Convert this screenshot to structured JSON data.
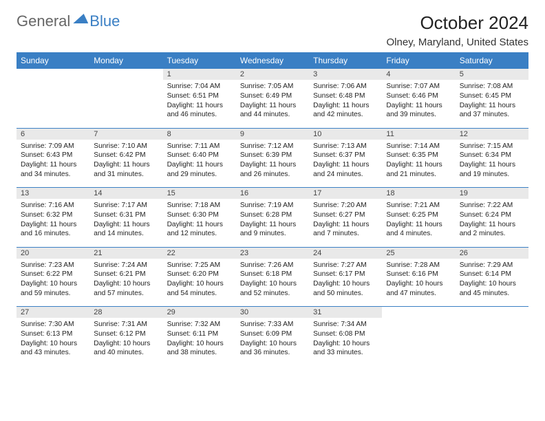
{
  "logo": {
    "part1": "General",
    "part2": "Blue"
  },
  "title": "October 2024",
  "location": "Olney, Maryland, United States",
  "colors": {
    "header_bg": "#3a7fc4",
    "header_fg": "#ffffff",
    "daynum_bg": "#e9e9e9",
    "rule": "#3a7fc4",
    "page_bg": "#ffffff",
    "text": "#222222"
  },
  "day_headers": [
    "Sunday",
    "Monday",
    "Tuesday",
    "Wednesday",
    "Thursday",
    "Friday",
    "Saturday"
  ],
  "weeks": [
    [
      null,
      null,
      {
        "n": 1,
        "sr": "7:04 AM",
        "ss": "6:51 PM",
        "dl": "11 hours and 46 minutes."
      },
      {
        "n": 2,
        "sr": "7:05 AM",
        "ss": "6:49 PM",
        "dl": "11 hours and 44 minutes."
      },
      {
        "n": 3,
        "sr": "7:06 AM",
        "ss": "6:48 PM",
        "dl": "11 hours and 42 minutes."
      },
      {
        "n": 4,
        "sr": "7:07 AM",
        "ss": "6:46 PM",
        "dl": "11 hours and 39 minutes."
      },
      {
        "n": 5,
        "sr": "7:08 AM",
        "ss": "6:45 PM",
        "dl": "11 hours and 37 minutes."
      }
    ],
    [
      {
        "n": 6,
        "sr": "7:09 AM",
        "ss": "6:43 PM",
        "dl": "11 hours and 34 minutes."
      },
      {
        "n": 7,
        "sr": "7:10 AM",
        "ss": "6:42 PM",
        "dl": "11 hours and 31 minutes."
      },
      {
        "n": 8,
        "sr": "7:11 AM",
        "ss": "6:40 PM",
        "dl": "11 hours and 29 minutes."
      },
      {
        "n": 9,
        "sr": "7:12 AM",
        "ss": "6:39 PM",
        "dl": "11 hours and 26 minutes."
      },
      {
        "n": 10,
        "sr": "7:13 AM",
        "ss": "6:37 PM",
        "dl": "11 hours and 24 minutes."
      },
      {
        "n": 11,
        "sr": "7:14 AM",
        "ss": "6:35 PM",
        "dl": "11 hours and 21 minutes."
      },
      {
        "n": 12,
        "sr": "7:15 AM",
        "ss": "6:34 PM",
        "dl": "11 hours and 19 minutes."
      }
    ],
    [
      {
        "n": 13,
        "sr": "7:16 AM",
        "ss": "6:32 PM",
        "dl": "11 hours and 16 minutes."
      },
      {
        "n": 14,
        "sr": "7:17 AM",
        "ss": "6:31 PM",
        "dl": "11 hours and 14 minutes."
      },
      {
        "n": 15,
        "sr": "7:18 AM",
        "ss": "6:30 PM",
        "dl": "11 hours and 12 minutes."
      },
      {
        "n": 16,
        "sr": "7:19 AM",
        "ss": "6:28 PM",
        "dl": "11 hours and 9 minutes."
      },
      {
        "n": 17,
        "sr": "7:20 AM",
        "ss": "6:27 PM",
        "dl": "11 hours and 7 minutes."
      },
      {
        "n": 18,
        "sr": "7:21 AM",
        "ss": "6:25 PM",
        "dl": "11 hours and 4 minutes."
      },
      {
        "n": 19,
        "sr": "7:22 AM",
        "ss": "6:24 PM",
        "dl": "11 hours and 2 minutes."
      }
    ],
    [
      {
        "n": 20,
        "sr": "7:23 AM",
        "ss": "6:22 PM",
        "dl": "10 hours and 59 minutes."
      },
      {
        "n": 21,
        "sr": "7:24 AM",
        "ss": "6:21 PM",
        "dl": "10 hours and 57 minutes."
      },
      {
        "n": 22,
        "sr": "7:25 AM",
        "ss": "6:20 PM",
        "dl": "10 hours and 54 minutes."
      },
      {
        "n": 23,
        "sr": "7:26 AM",
        "ss": "6:18 PM",
        "dl": "10 hours and 52 minutes."
      },
      {
        "n": 24,
        "sr": "7:27 AM",
        "ss": "6:17 PM",
        "dl": "10 hours and 50 minutes."
      },
      {
        "n": 25,
        "sr": "7:28 AM",
        "ss": "6:16 PM",
        "dl": "10 hours and 47 minutes."
      },
      {
        "n": 26,
        "sr": "7:29 AM",
        "ss": "6:14 PM",
        "dl": "10 hours and 45 minutes."
      }
    ],
    [
      {
        "n": 27,
        "sr": "7:30 AM",
        "ss": "6:13 PM",
        "dl": "10 hours and 43 minutes."
      },
      {
        "n": 28,
        "sr": "7:31 AM",
        "ss": "6:12 PM",
        "dl": "10 hours and 40 minutes."
      },
      {
        "n": 29,
        "sr": "7:32 AM",
        "ss": "6:11 PM",
        "dl": "10 hours and 38 minutes."
      },
      {
        "n": 30,
        "sr": "7:33 AM",
        "ss": "6:09 PM",
        "dl": "10 hours and 36 minutes."
      },
      {
        "n": 31,
        "sr": "7:34 AM",
        "ss": "6:08 PM",
        "dl": "10 hours and 33 minutes."
      },
      null,
      null
    ]
  ],
  "labels": {
    "sunrise": "Sunrise:",
    "sunset": "Sunset:",
    "daylight": "Daylight:"
  }
}
